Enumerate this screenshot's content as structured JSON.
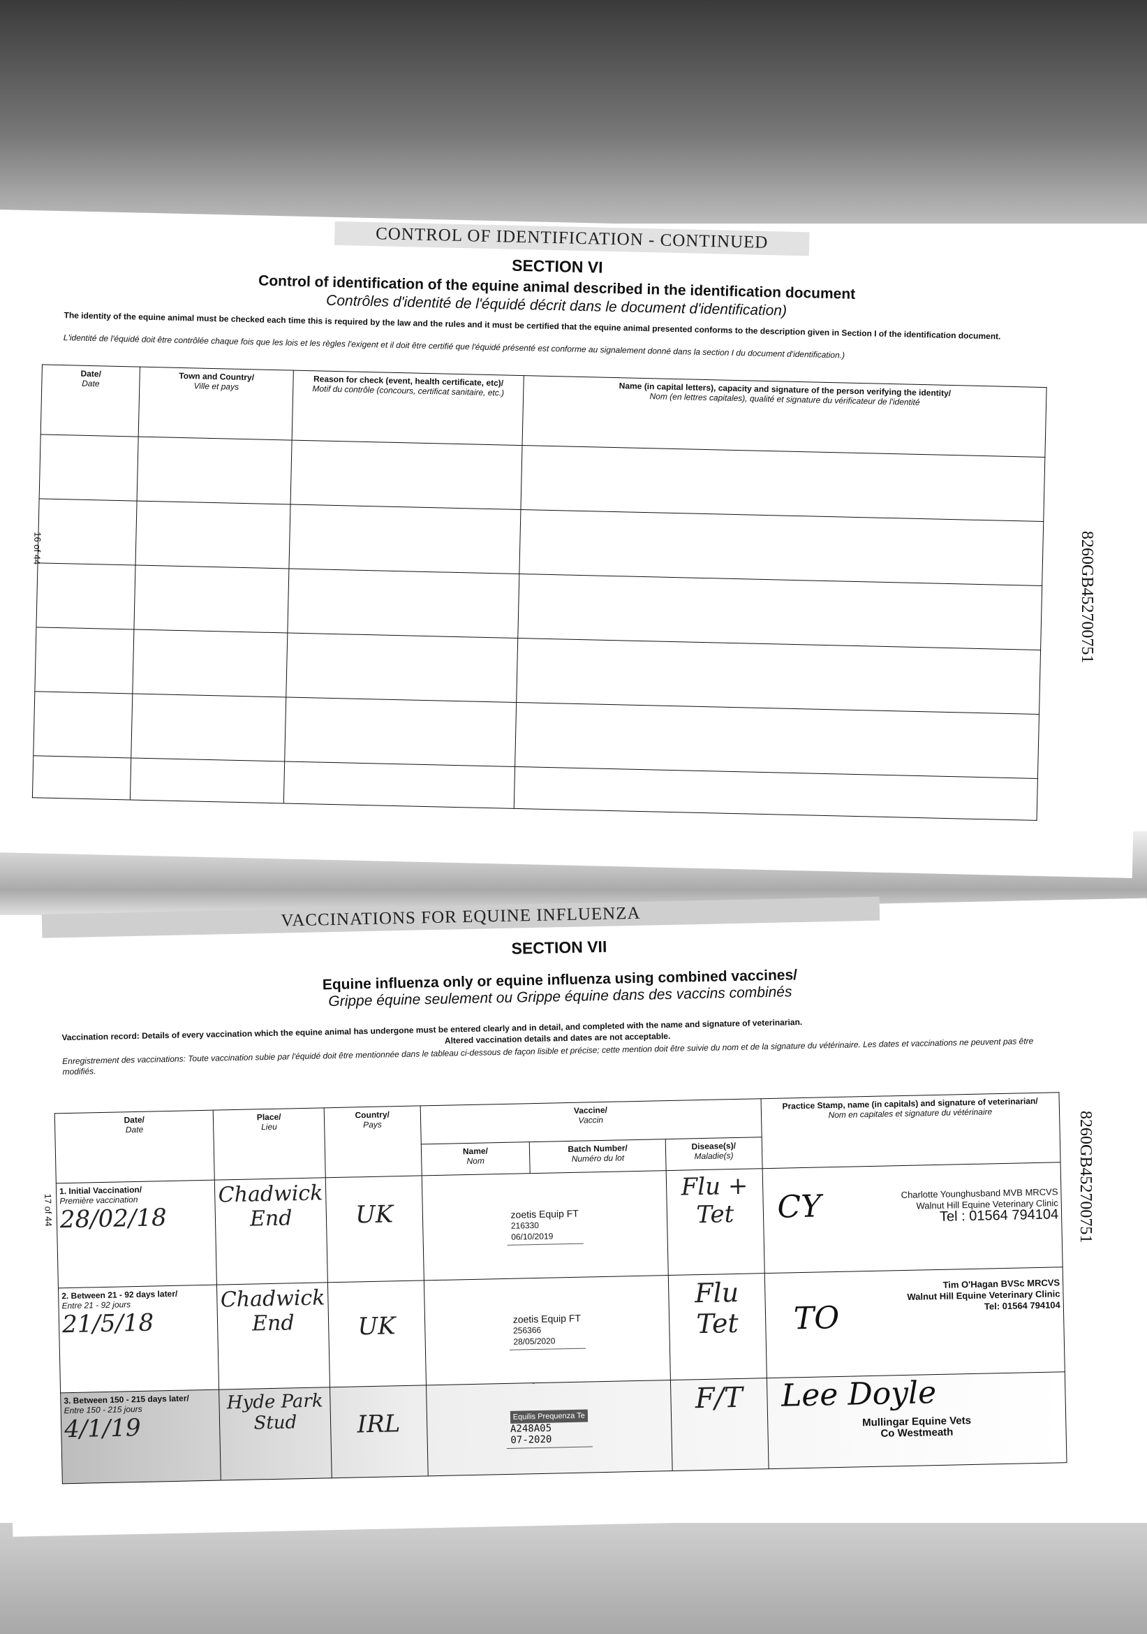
{
  "side_reference": "8260GB452700751",
  "section6": {
    "band": "CONTROL OF IDENTIFICATION - CONTINUED",
    "section": "SECTION VI",
    "title_en": "Control of identification of the equine animal described in the identification document",
    "title_fr": "Contrôles d'identité de l'équidé décrit dans le document d'identification)",
    "note_en": "The identity of the equine animal must be checked each time this is required by the law and the rules and it must be certified that the equine animal presented conforms to the description given in Section I of the identification document.",
    "note_fr": "L'identité de l'équidé doit être contrôlée chaque fois que les lois et les règles l'exigent et il doit être certifié que l'équidé présenté est conforme au signalement donné dans la section I du document d'identification.)",
    "page": "16 of 44",
    "headers": [
      {
        "en": "Date/",
        "fr": "Date"
      },
      {
        "en": "Town and Country/",
        "fr": "Ville et pays"
      },
      {
        "en": "Reason for check (event, health certificate, etc)/",
        "fr": "Motif du contrôle (concours, certificat sanitaire, etc.)"
      },
      {
        "en": "Name (in capital letters), capacity and signature of the person verifying the identity/",
        "fr": "Nom (en lettres capitales), qualité et signature du vérificateur de l'identité"
      }
    ]
  },
  "section7": {
    "band": "VACCINATIONS FOR EQUINE INFLUENZA",
    "section": "SECTION VII",
    "title_en": "Equine influenza only or equine influenza using combined vaccines/",
    "title_fr": "Grippe équine seulement ou Grippe équine dans des vaccins combinés",
    "note_en": "Vaccination record: Details of every vaccination which the equine animal has undergone must be entered clearly and in detail, and completed with the name and signature of veterinarian.",
    "note_en2": "Altered vaccination details and dates are not acceptable.",
    "note_fr": "Enregistrement des vaccinations: Toute vaccination subie par l'équidé doit être mentionnée dans le tableau ci-dessous de façon lisible et précise; cette mention doit être suivie du nom et de la signature du vétérinaire. Les dates et vaccinations ne peuvent pas être modifiés.",
    "page": "17 of 44",
    "headers": {
      "date": {
        "en": "Date/",
        "fr": "Date"
      },
      "place": {
        "en": "Place/",
        "fr": "Lieu"
      },
      "country": {
        "en": "Country/",
        "fr": "Pays"
      },
      "vaccine": {
        "en": "Vaccine/",
        "fr": "Vaccin"
      },
      "name": {
        "en": "Name/",
        "fr": "Nom"
      },
      "batch": {
        "en": "Batch Number/",
        "fr": "Numéro du lot"
      },
      "disease": {
        "en": "Disease(s)/",
        "fr": "Maladie(s)"
      },
      "vet": {
        "en": "Practice Stamp, name (in capitals) and signature of veterinarian/",
        "fr": "Nom en capitales et signature du vétérinaire"
      }
    },
    "rows": [
      {
        "label_en": "1. Initial Vaccination/",
        "label_fr": "Première vaccination",
        "date": "28/02/18",
        "place": "Chadwick End",
        "country": "UK",
        "vaccine_brand": "zoetis Equip FT",
        "batch": "216330",
        "expiry": "06/10/2019",
        "disease": "Flu + Tet",
        "signature": "CY",
        "stamp": [
          "Charlotte Younghusband MVB MRCVS",
          "Walnut Hill Equine Veterinary Clinic",
          "Tel : 01564 794104"
        ]
      },
      {
        "label_en": "2. Between 21 - 92 days later/",
        "label_fr": "Entre 21 - 92 jours",
        "date": "21/5/18",
        "place": "Chadwick End",
        "country": "UK",
        "vaccine_brand": "zoetis Equip FT",
        "batch": "256366",
        "expiry": "28/05/2020",
        "disease": "Flu Tet",
        "signature": "TO",
        "stamp": [
          "Tim O'Hagan BVSc MRCVS",
          "Walnut Hill Equine Veterinary Clinic",
          "Tel: 01564 794104"
        ]
      },
      {
        "label_en": "3. Between 150 - 215 days later/",
        "label_fr": "Entre 150 - 215 jours",
        "date": "4/1/19",
        "place": "Hyde Park Stud",
        "country": "IRL",
        "vaccine_brand": "Equilis Prequenza Te",
        "batch": "A248A05",
        "expiry": "07-2020",
        "disease": "F/T",
        "signature": "Lee Doyle",
        "stamp": [
          "Mullingar Equine Vets",
          "Co Westmeath"
        ]
      }
    ]
  }
}
